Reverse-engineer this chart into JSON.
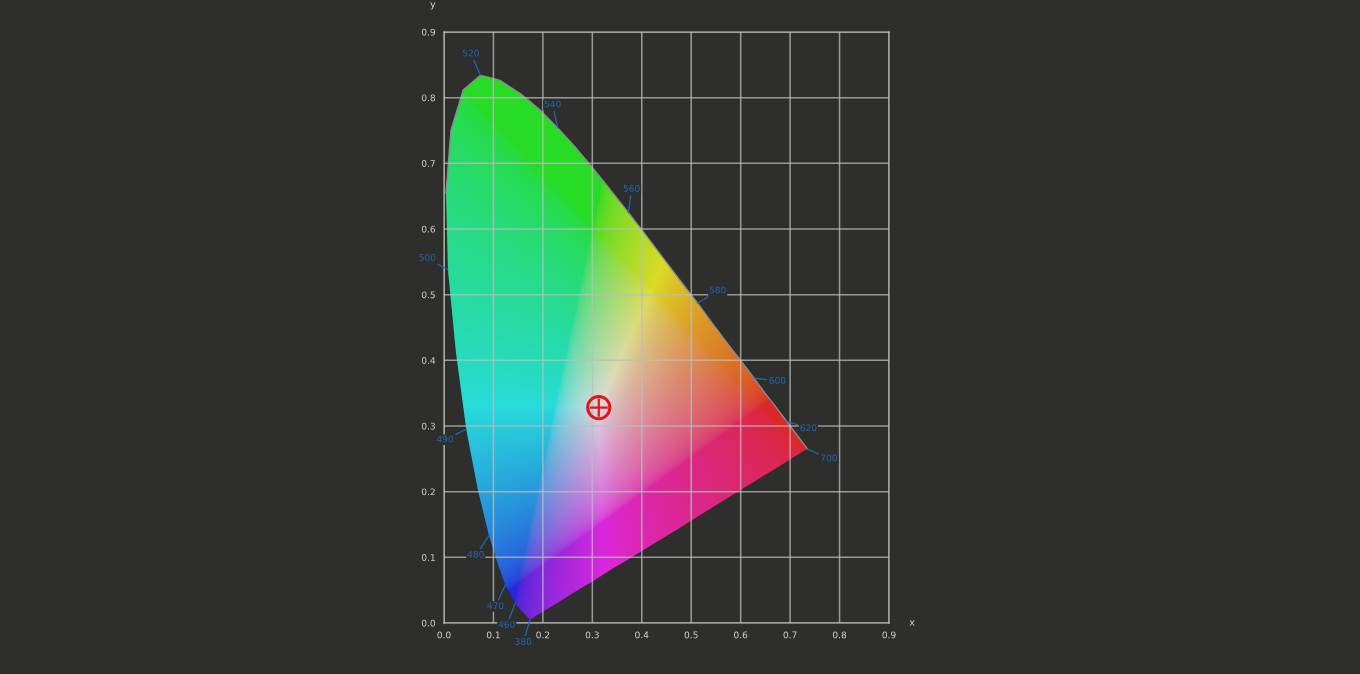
{
  "chart_data": {
    "type": "scatter",
    "xlabel": "x",
    "ylabel": "y",
    "xlim": [
      0,
      0.9
    ],
    "ylim": [
      0,
      0.9
    ],
    "xticks": [
      {
        "value": 0,
        "label": "0.0"
      },
      0.1,
      0.2,
      0.3,
      0.4,
      0.5,
      0.6,
      0.7,
      0.8,
      0.9
    ],
    "yticks": [
      {
        "value": 0,
        "label": "0.0"
      },
      0.1,
      0.2,
      0.3,
      0.4,
      0.5,
      0.6,
      0.7,
      0.8,
      0.9
    ],
    "grid": true,
    "series": [
      {
        "type": "line",
        "color": "#8c8c8c",
        "marker": "none",
        "x": [
          0.004,
          0.008,
          0.014,
          0.024,
          0.039,
          0.045,
          0.069,
          0.074,
          0.091,
          0.11,
          0.114,
          0.124,
          0.144,
          0.155,
          0.174,
          0.193,
          0.23,
          0.266,
          0.302,
          0.337,
          0.373,
          0.409,
          0.444,
          0.479,
          0.513,
          0.545,
          0.575,
          0.603,
          0.627,
          0.648,
          0.666,
          0.692,
          0.708,
          0.719,
          0.73,
          0.735
        ],
        "values": [
          0.655,
          0.693,
          0.75,
          0.775,
          0.812,
          0.816,
          0.831,
          0.834,
          0.831,
          0.827,
          0.826,
          0.821,
          0.811,
          0.806,
          0.794,
          0.782,
          0.754,
          0.724,
          0.692,
          0.659,
          0.625,
          0.59,
          0.555,
          0.52,
          0.487,
          0.454,
          0.424,
          0.397,
          0.373,
          0.351,
          0.334,
          0.308,
          0.292,
          0.281,
          0.27,
          0.265
        ],
        "upper": [
          0.655,
          0.693,
          0.75,
          0.775,
          0.812,
          0.816,
          0.831,
          0.834,
          0.831,
          0.827,
          0.826,
          0.821,
          0.811,
          0.806,
          0.794,
          0.782,
          0.754,
          0.724,
          0.692,
          0.659,
          0.625,
          0.59,
          0.555,
          0.52,
          0.487,
          0.454,
          0.424,
          0.397,
          0.373,
          0.351,
          0.334,
          0.308,
          0.292,
          0.281,
          0.27,
          0.265
        ],
        "lower": [
          0.655,
          0.538,
          0.491,
          0.413,
          0.329,
          0.295,
          0.201,
          0.186,
          0.133,
          0.087,
          0.079,
          0.058,
          0.03,
          0.02,
          0.005,
          0.014,
          0.031,
          0.048,
          0.064,
          0.081,
          0.097,
          0.114,
          0.13,
          0.146,
          0.162,
          0.177,
          0.191,
          0.204,
          0.215,
          0.225,
          0.233,
          0.245,
          0.253,
          0.258,
          0.263,
          0.265
        ]
      },
      {
        "color": "#e3141b",
        "marker": "circle",
        "x": [
          0.313
        ],
        "values": [
          0.328
        ]
      }
    ],
    "annotations": [
      {
        "text": "520",
        "x": 0.074,
        "y": 0.834
      },
      {
        "text": "540",
        "x": 0.23,
        "y": 0.754
      },
      {
        "text": "560",
        "x": 0.373,
        "y": 0.625
      },
      {
        "text": "580",
        "x": 0.513,
        "y": 0.487
      },
      {
        "text": "600",
        "x": 0.627,
        "y": 0.373
      },
      {
        "text": "620",
        "x": 0.692,
        "y": 0.308
      },
      {
        "text": "700",
        "x": 0.735,
        "y": 0.265
      },
      {
        "text": "500",
        "x": 0.008,
        "y": 0.538
      },
      {
        "text": "490",
        "x": 0.045,
        "y": 0.295
      },
      {
        "text": "480",
        "x": 0.091,
        "y": 0.133
      },
      {
        "text": "470",
        "x": 0.124,
        "y": 0.058
      },
      {
        "text": "460",
        "x": 0.144,
        "y": 0.03
      },
      {
        "text": "380",
        "x": 0.174,
        "y": 0.005
      }
    ]
  }
}
